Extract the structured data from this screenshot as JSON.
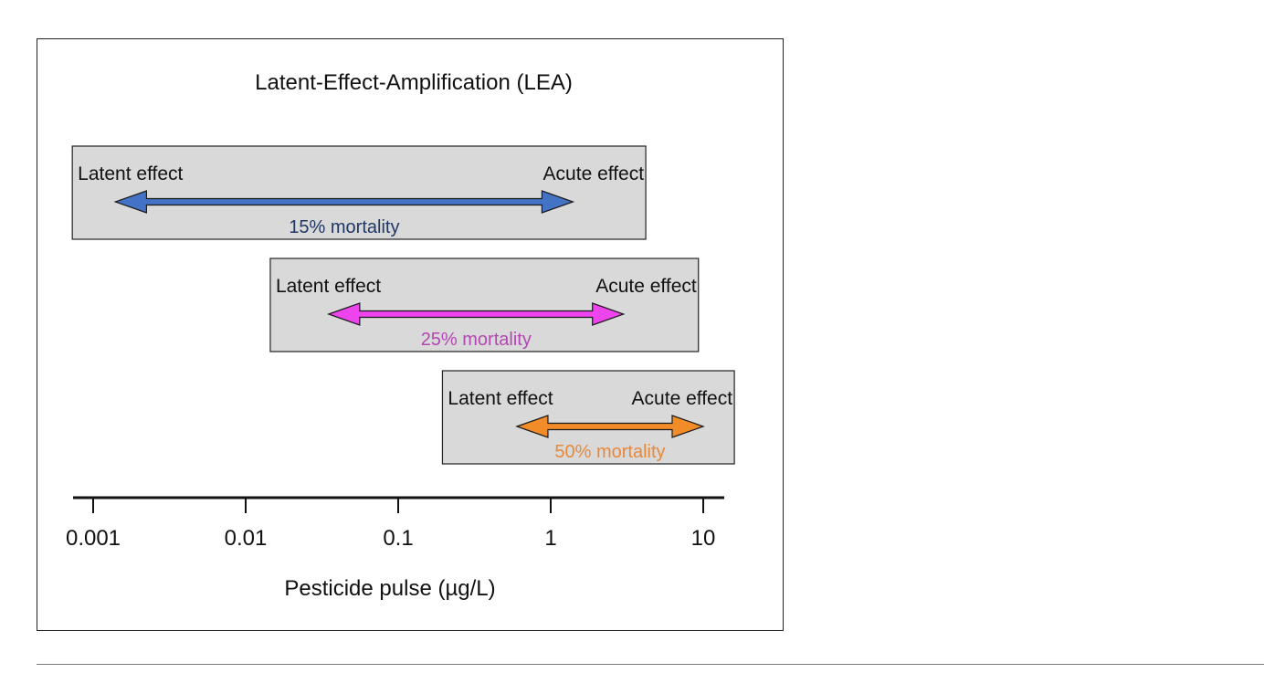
{
  "title": "Latent-Effect-Amplification (LEA)",
  "axis": {
    "label": "Pesticide pulse (µg/L)",
    "scale": "log",
    "ticks": [
      {
        "value": 0.001,
        "label": "0.001"
      },
      {
        "value": 0.01,
        "label": "0.01"
      },
      {
        "value": 0.1,
        "label": "0.1"
      },
      {
        "value": 1,
        "label": "1"
      },
      {
        "value": 10,
        "label": "10"
      }
    ]
  },
  "ranges": [
    {
      "latent_label": "Latent effect",
      "acute_label": "Acute effect",
      "mortality_label": "15% mortality",
      "box_from": 0.00073,
      "box_to": 4.2,
      "arrow_from": 0.0014,
      "arrow_to": 1.4,
      "arrow_color": "#4472c4",
      "label_color": "#1f3864"
    },
    {
      "latent_label": "Latent effect",
      "acute_label": "Acute effect",
      "mortality_label": "25% mortality",
      "box_from": 0.0145,
      "box_to": 9.3,
      "arrow_from": 0.035,
      "arrow_to": 3.0,
      "arrow_color": "#ee44ee",
      "label_color": "#b347b3"
    },
    {
      "latent_label": "Latent effect",
      "acute_label": "Acute effect",
      "mortality_label": "50% mortality",
      "box_from": 0.195,
      "box_to": 16.0,
      "arrow_from": 0.6,
      "arrow_to": 10.0,
      "arrow_color": "#f28c28",
      "label_color": "#e6893a"
    }
  ],
  "colors": {
    "box_fill": "#d9d9d9",
    "box_stroke": "#222222",
    "axis": "#111111",
    "text": "#111111"
  }
}
